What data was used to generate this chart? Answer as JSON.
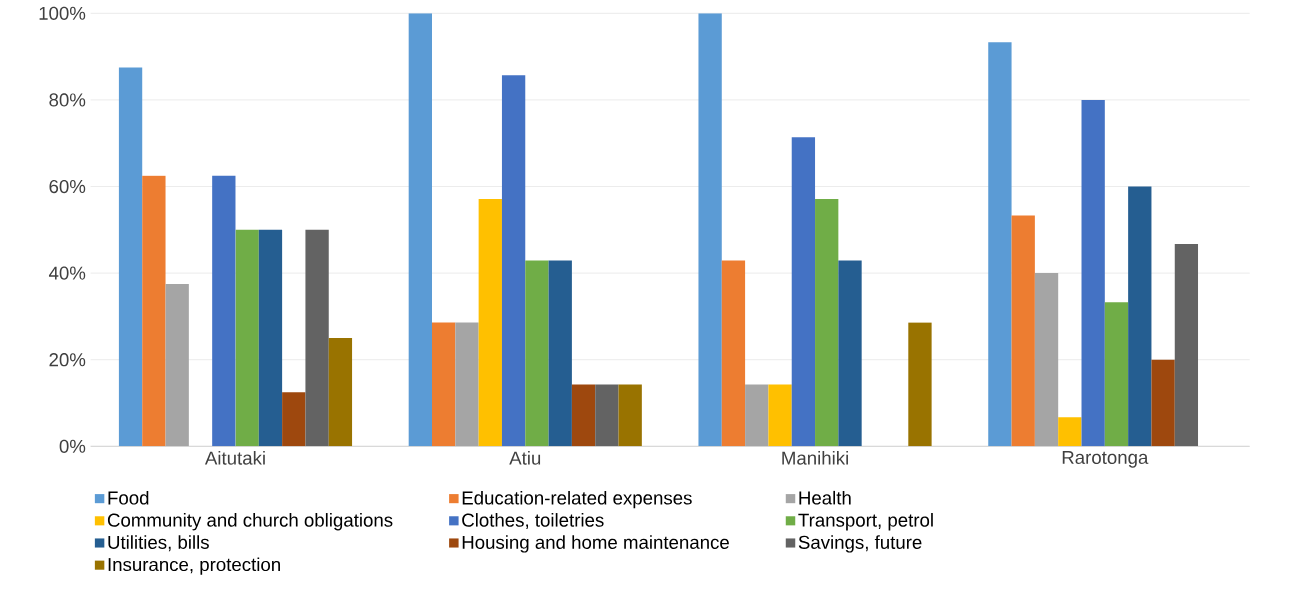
{
  "chart_data": {
    "type": "bar",
    "categories": [
      "Aitutaki",
      "Atiu",
      "Manihiki",
      "Rarotonga"
    ],
    "series": [
      {
        "name": "Food",
        "color": "#5b9bd5",
        "values": [
          87.5,
          100,
          100,
          93.3
        ]
      },
      {
        "name": "Education-related expenses",
        "color": "#ed7d31",
        "values": [
          62.5,
          28.6,
          42.9,
          53.3
        ]
      },
      {
        "name": "Health",
        "color": "#a5a5a5",
        "values": [
          37.5,
          28.6,
          14.3,
          40
        ]
      },
      {
        "name": "Community and church obligations",
        "color": "#ffc000",
        "values": [
          0,
          57.1,
          14.3,
          6.7
        ]
      },
      {
        "name": "Clothes, toiletries",
        "color": "#4472c4",
        "values": [
          62.5,
          85.7,
          71.4,
          80
        ]
      },
      {
        "name": "Transport, petrol",
        "color": "#70ad47",
        "values": [
          50,
          42.9,
          57.1,
          33.3
        ]
      },
      {
        "name": "Utilities, bills",
        "color": "#255e91",
        "values": [
          50,
          42.9,
          42.9,
          60
        ]
      },
      {
        "name": "Housing and home maintenance",
        "color": "#9e480e",
        "values": [
          12.5,
          14.3,
          0,
          20
        ]
      },
      {
        "name": "Savings, future",
        "color": "#636363",
        "values": [
          50,
          14.3,
          0,
          46.7
        ]
      },
      {
        "name": "Insurance, protection",
        "color": "#997300",
        "values": [
          25,
          14.3,
          28.6,
          0
        ]
      }
    ],
    "ylim": [
      0,
      100
    ],
    "yticks": [
      {
        "value": 0,
        "label": "0%"
      },
      {
        "value": 20,
        "label": "20%"
      },
      {
        "value": 40,
        "label": "40%"
      },
      {
        "value": 60,
        "label": "60%"
      },
      {
        "value": 80,
        "label": "80%"
      },
      {
        "value": 100,
        "label": "100%"
      }
    ],
    "grid": "y",
    "legend": "bottom"
  }
}
